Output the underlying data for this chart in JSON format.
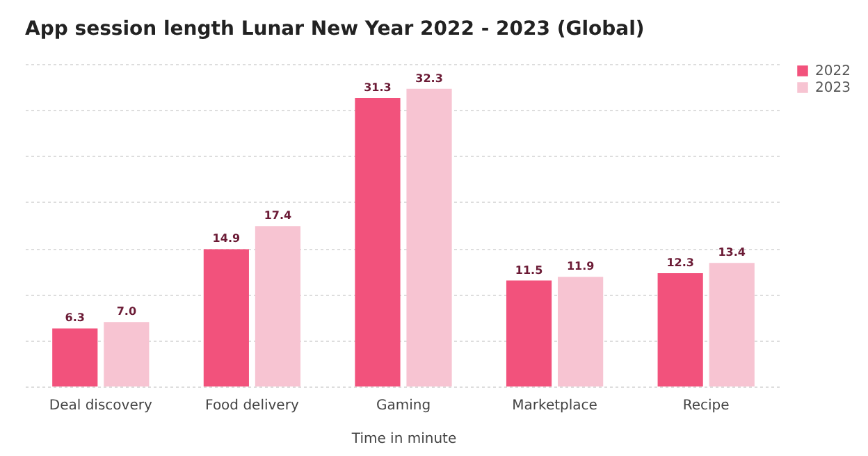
{
  "chart_data": {
    "type": "bar",
    "title": "App session length Lunar New Year 2022 - 2023 (Global)",
    "xlabel": "Time in minute",
    "categories": [
      "Deal discovery",
      "Food delivery",
      "Gaming",
      "Marketplace",
      "Recipe"
    ],
    "series": [
      {
        "name": "2022",
        "color": "#f2527c",
        "values": [
          6.3,
          14.9,
          31.3,
          11.5,
          12.3
        ],
        "value_labels": [
          "6.3",
          "14.9",
          "31.3",
          "11.5",
          "12.3"
        ]
      },
      {
        "name": "2023",
        "color": "#f7c4d2",
        "values": [
          7.0,
          17.4,
          32.3,
          11.9,
          13.4
        ],
        "value_labels": [
          "7.0",
          "17.4",
          "32.3",
          "11.9",
          "13.4"
        ]
      }
    ],
    "tick_labels": "x",
    "grid": "y",
    "legend": "top right"
  }
}
